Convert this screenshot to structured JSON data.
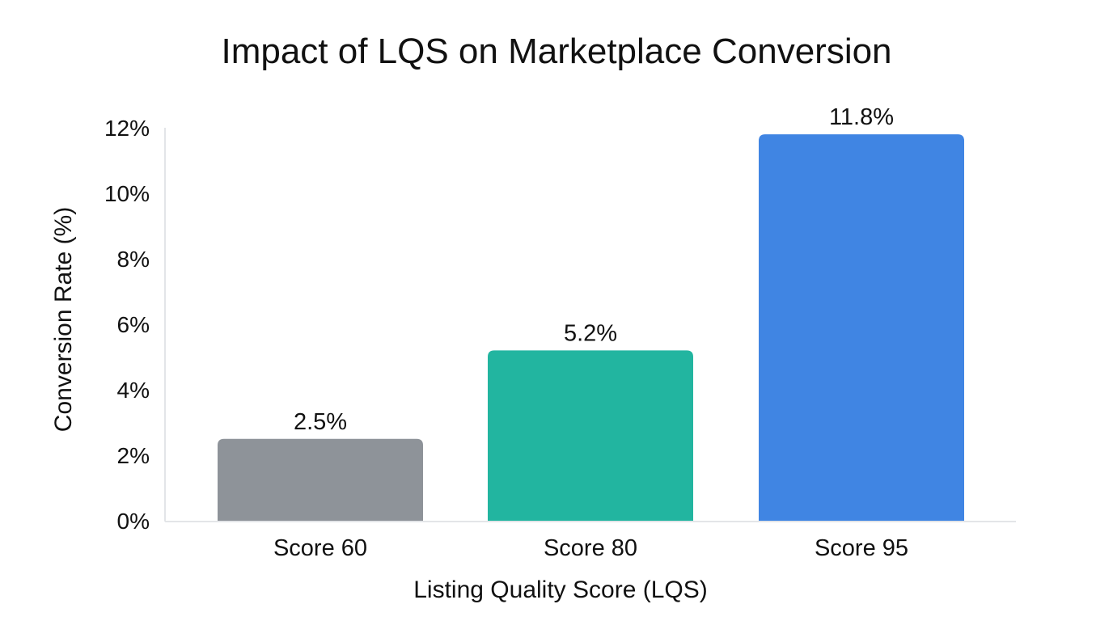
{
  "chart_data": {
    "type": "bar",
    "title": "Impact of LQS on Marketplace Conversion",
    "xlabel": "Listing Quality Score (LQS)",
    "ylabel": "Conversion Rate (%)",
    "categories": [
      "Score 60",
      "Score 80",
      "Score 95"
    ],
    "values": [
      2.5,
      5.2,
      11.8
    ],
    "data_labels": [
      "2.5%",
      "5.2%",
      "11.8%"
    ],
    "colors": [
      "#8e9399",
      "#22b5a0",
      "#4085e3"
    ],
    "ylim": [
      0,
      12
    ],
    "yticks": [
      0,
      2,
      4,
      6,
      8,
      10,
      12
    ],
    "ytick_labels": [
      "0%",
      "2%",
      "4%",
      "6%",
      "8%",
      "10%",
      "12%"
    ],
    "grid": false,
    "legend": "none"
  }
}
